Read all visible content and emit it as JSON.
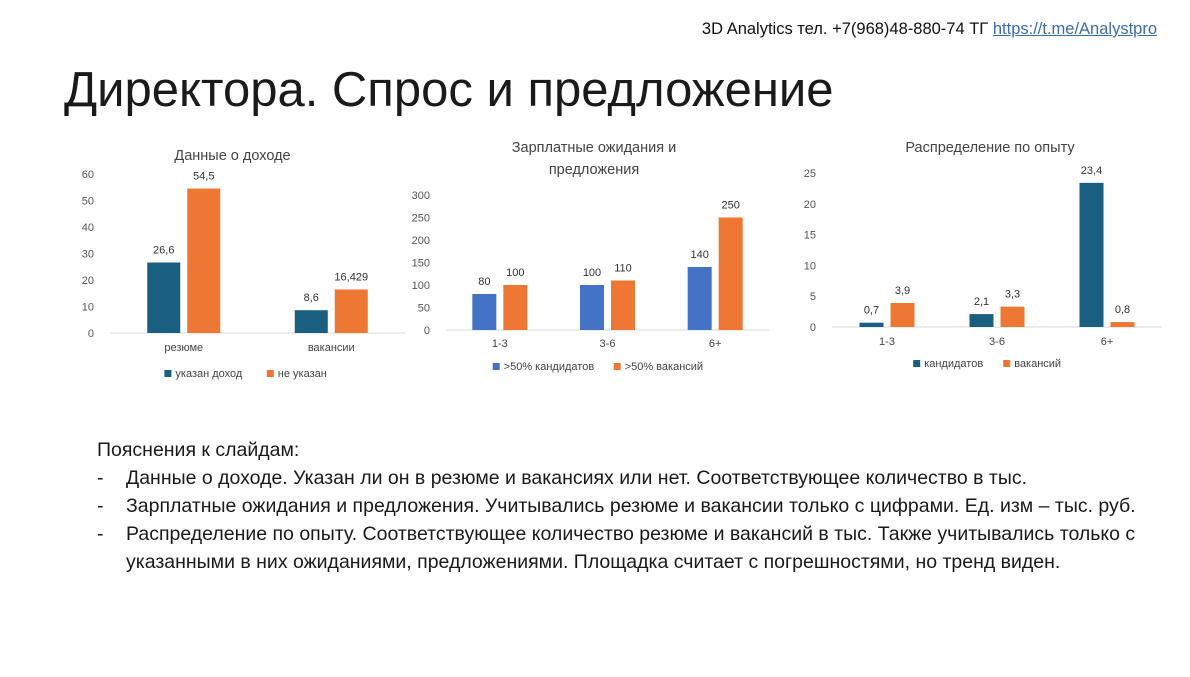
{
  "header": {
    "text": "3D Analytics тел. +7(968)48-880-74  ТГ ",
    "link": "https://t.me/Analystpro"
  },
  "title": "Директора. Спрос и предложение",
  "chart_data": [
    {
      "type": "bar",
      "title": "Данные  о доходе",
      "categories": [
        "резюме",
        "вакансии"
      ],
      "series": [
        {
          "name": "указан доход",
          "values": [
            26.6,
            8.6
          ],
          "labels": [
            "26,6",
            "8,6"
          ],
          "color": "#1a5f7f"
        },
        {
          "name": "не указан",
          "values": [
            54.5,
            16.429
          ],
          "labels": [
            "54,5",
            "16,429"
          ],
          "color": "#ee7733"
        }
      ],
      "ylim": [
        0,
        60
      ],
      "yticks": [
        0,
        10,
        20,
        30,
        40,
        50,
        60
      ],
      "grid": false,
      "legend": "bottom"
    },
    {
      "type": "bar",
      "title": "Зарплатные ожидания и предложения",
      "categories": [
        "1-3",
        "3-6",
        "6+"
      ],
      "series": [
        {
          "name": ">50% кандидатов",
          "values": [
            80,
            100,
            140
          ],
          "labels": [
            "80",
            "100",
            "140"
          ],
          "color": "#4472c4"
        },
        {
          "name": ">50% вакансий",
          "values": [
            100,
            110,
            250
          ],
          "labels": [
            "100",
            "110",
            "250"
          ],
          "color": "#ee7733"
        }
      ],
      "ylim": [
        0,
        300
      ],
      "yticks": [
        0,
        50,
        100,
        150,
        200,
        250,
        300
      ],
      "grid": false,
      "legend": "bottom"
    },
    {
      "type": "bar",
      "title": "Распределение по опыту",
      "categories": [
        "1-3",
        "3-6",
        "6+"
      ],
      "series": [
        {
          "name": "кандидатов",
          "values": [
            0.7,
            2.1,
            23.4
          ],
          "labels": [
            "0,7",
            "2,1",
            "23,4"
          ],
          "color": "#1a5f7f"
        },
        {
          "name": "вакансий",
          "values": [
            3.9,
            3.3,
            0.8
          ],
          "labels": [
            "3,9",
            "3,3",
            "0,8"
          ],
          "color": "#ee7733"
        }
      ],
      "ylim": [
        0,
        25
      ],
      "yticks": [
        0,
        5,
        10,
        15,
        20,
        25
      ],
      "grid": false,
      "legend": "bottom"
    }
  ],
  "notes": {
    "heading": "Пояснения  к слайдам:",
    "items": [
      "Данные о доходе. Указан ли он в резюме и вакансиях или нет. Соответствующее количество в тыс.",
      "Зарплатные ожидания и предложения. Учитывались резюме и вакансии только с цифрами. Ед. изм – тыс. руб.",
      "Распределение по опыту.  Соответствующее количество резюме и вакансий в тыс. Также учитывались только с указанными в них ожиданиями, предложениями. Площадка считает с погрешностями, но тренд виден."
    ]
  }
}
